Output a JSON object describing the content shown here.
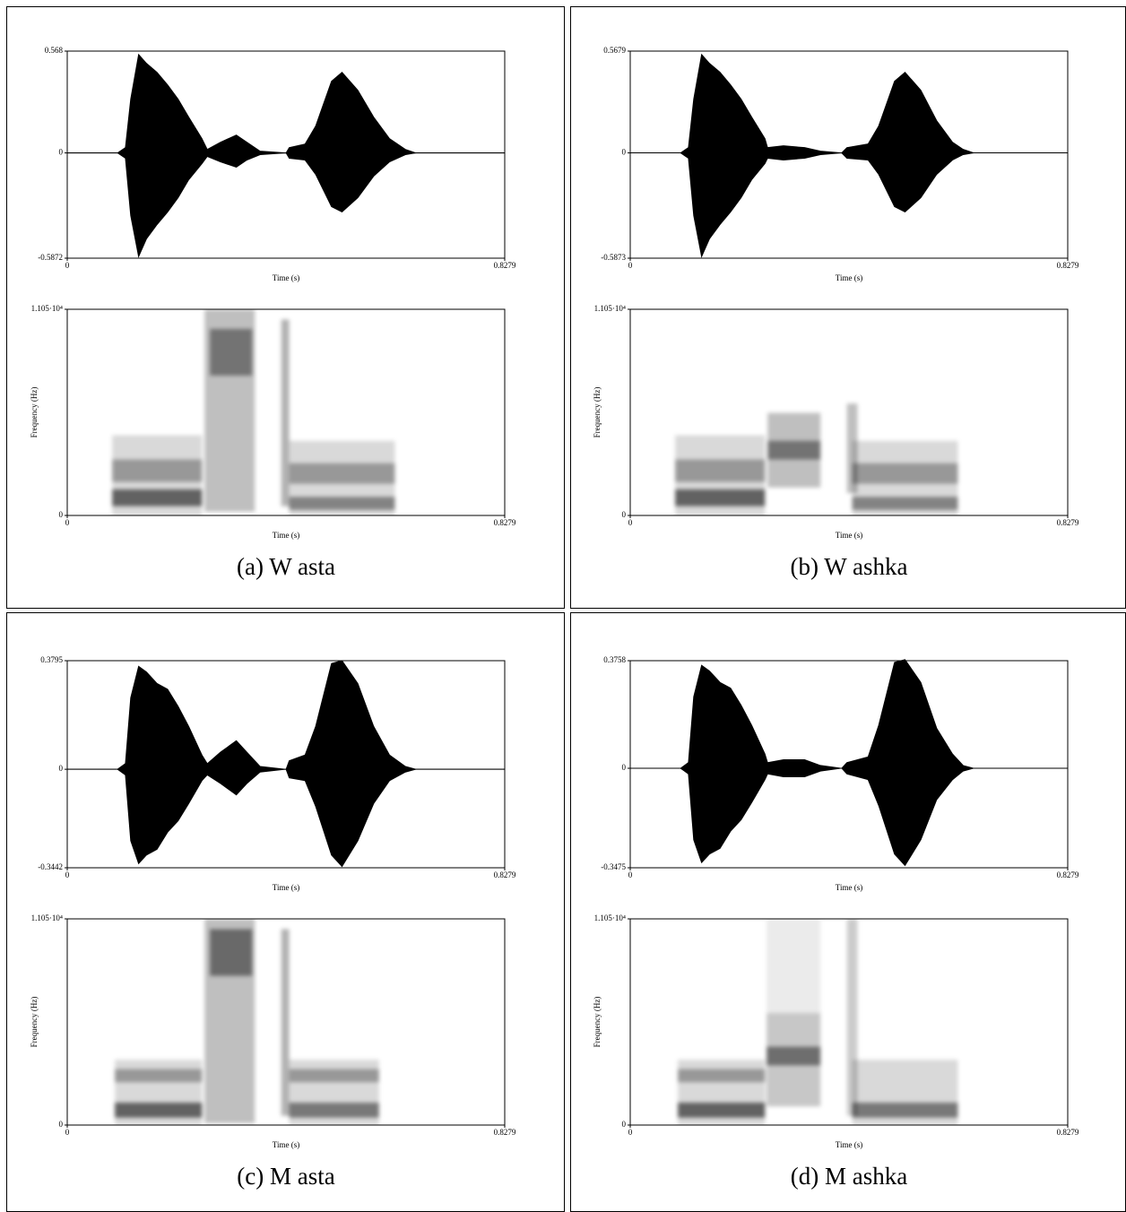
{
  "captions": [
    "(a) W asta",
    "(b) W ashka",
    "(c) M asta",
    "(d) M ashka"
  ],
  "chart_data": [
    {
      "type": "waveform",
      "xlabel": "Time (s)",
      "xlim": [
        0,
        0.8279
      ],
      "xticks": [
        0,
        0.8279
      ],
      "ylim": [
        -0.5872,
        0.568
      ],
      "yticks": [
        0.568,
        0,
        -0.5872
      ],
      "x": [
        0,
        0.095,
        0.11,
        0.12,
        0.135,
        0.15,
        0.17,
        0.19,
        0.21,
        0.23,
        0.255,
        0.265,
        0.29,
        0.32,
        0.34,
        0.365,
        0.414,
        0.42,
        0.45,
        0.47,
        0.5,
        0.52,
        0.55,
        0.58,
        0.61,
        0.64,
        0.66,
        0.8279
      ],
      "upper": [
        0,
        0,
        0.03,
        0.3,
        0.55,
        0.5,
        0.45,
        0.38,
        0.3,
        0.2,
        0.08,
        0.02,
        0.06,
        0.1,
        0.06,
        0.01,
        0,
        0.03,
        0.05,
        0.15,
        0.4,
        0.45,
        0.35,
        0.2,
        0.08,
        0.02,
        0,
        0
      ],
      "lower": [
        0,
        0,
        -0.03,
        -0.35,
        -0.58,
        -0.48,
        -0.4,
        -0.33,
        -0.25,
        -0.15,
        -0.06,
        -0.02,
        -0.05,
        -0.08,
        -0.04,
        -0.01,
        0,
        -0.03,
        -0.04,
        -0.12,
        -0.3,
        -0.33,
        -0.25,
        -0.13,
        -0.05,
        -0.01,
        0,
        0
      ]
    },
    {
      "type": "spectrogram",
      "xlabel": "Time (s)",
      "ylabel": "Frequency (Hz)",
      "xlim": [
        0,
        0.8279
      ],
      "xticks": [
        0,
        0.8279
      ],
      "ylim": [
        0,
        11050
      ],
      "yticks": [
        0,
        {
          "value": 11050,
          "label": "1.105·10⁴"
        }
      ],
      "regions": [
        {
          "time": [
            0.085,
            0.255
          ],
          "frequency": [
            0,
            4300
          ],
          "intensity": 0.15
        },
        {
          "time": [
            0.085,
            0.255
          ],
          "frequency": [
            1800,
            3000
          ],
          "intensity": 0.3
        },
        {
          "time": [
            0.085,
            0.255
          ],
          "frequency": [
            500,
            1400
          ],
          "intensity": 0.55
        },
        {
          "time": [
            0.26,
            0.355
          ],
          "frequency": [
            200,
            11050
          ],
          "intensity": 0.25
        },
        {
          "time": [
            0.27,
            0.35
          ],
          "frequency": [
            7500,
            10000
          ],
          "intensity": 0.4
        },
        {
          "time": [
            0.405,
            0.42
          ],
          "frequency": [
            500,
            10500
          ],
          "intensity": 0.3
        },
        {
          "time": [
            0.42,
            0.62
          ],
          "frequency": [
            0,
            4000
          ],
          "intensity": 0.15
        },
        {
          "time": [
            0.42,
            0.62
          ],
          "frequency": [
            1700,
            2800
          ],
          "intensity": 0.3
        },
        {
          "time": [
            0.42,
            0.62
          ],
          "frequency": [
            300,
            1000
          ],
          "intensity": 0.4
        }
      ]
    },
    {
      "type": "waveform",
      "xlabel": "Time (s)",
      "xlim": [
        0,
        0.8279
      ],
      "xticks": [
        0,
        0.8279
      ],
      "ylim": [
        -0.5873,
        0.5679
      ],
      "yticks": [
        0.5679,
        0,
        -0.5873
      ],
      "x": [
        0,
        0.095,
        0.11,
        0.12,
        0.135,
        0.15,
        0.17,
        0.19,
        0.21,
        0.23,
        0.255,
        0.26,
        0.29,
        0.33,
        0.36,
        0.4,
        0.41,
        0.45,
        0.47,
        0.5,
        0.52,
        0.55,
        0.58,
        0.61,
        0.63,
        0.65,
        0.8279
      ],
      "upper": [
        0,
        0,
        0.03,
        0.3,
        0.55,
        0.5,
        0.45,
        0.38,
        0.3,
        0.2,
        0.08,
        0.03,
        0.04,
        0.03,
        0.01,
        0,
        0.03,
        0.05,
        0.15,
        0.4,
        0.45,
        0.35,
        0.18,
        0.06,
        0.02,
        0,
        0
      ],
      "lower": [
        0,
        0,
        -0.03,
        -0.35,
        -0.58,
        -0.48,
        -0.4,
        -0.33,
        -0.25,
        -0.15,
        -0.06,
        -0.03,
        -0.04,
        -0.03,
        -0.01,
        0,
        -0.03,
        -0.04,
        -0.12,
        -0.3,
        -0.33,
        -0.25,
        -0.12,
        -0.04,
        -0.01,
        0,
        0
      ]
    },
    {
      "type": "spectrogram",
      "xlabel": "Time (s)",
      "ylabel": "Frequency (Hz)",
      "xlim": [
        0,
        0.8279
      ],
      "xticks": [
        0,
        0.8279
      ],
      "ylim": [
        0,
        11050
      ],
      "yticks": [
        0,
        {
          "value": 11050,
          "label": "1.105·10⁴"
        }
      ],
      "regions": [
        {
          "time": [
            0.085,
            0.255
          ],
          "frequency": [
            0,
            4300
          ],
          "intensity": 0.15
        },
        {
          "time": [
            0.085,
            0.255
          ],
          "frequency": [
            1800,
            3000
          ],
          "intensity": 0.3
        },
        {
          "time": [
            0.085,
            0.255
          ],
          "frequency": [
            500,
            1400
          ],
          "intensity": 0.55
        },
        {
          "time": [
            0.26,
            0.36
          ],
          "frequency": [
            1500,
            5500
          ],
          "intensity": 0.25
        },
        {
          "time": [
            0.26,
            0.36
          ],
          "frequency": [
            3000,
            4000
          ],
          "intensity": 0.4
        },
        {
          "time": [
            0.41,
            0.43
          ],
          "frequency": [
            1200,
            6000
          ],
          "intensity": 0.25
        },
        {
          "time": [
            0.42,
            0.62
          ],
          "frequency": [
            0,
            4000
          ],
          "intensity": 0.15
        },
        {
          "time": [
            0.42,
            0.62
          ],
          "frequency": [
            1700,
            2800
          ],
          "intensity": 0.3
        },
        {
          "time": [
            0.42,
            0.62
          ],
          "frequency": [
            300,
            1000
          ],
          "intensity": 0.4
        }
      ]
    },
    {
      "type": "waveform",
      "xlabel": "Time (s)",
      "xlim": [
        0,
        0.8279
      ],
      "xticks": [
        0,
        0.8279
      ],
      "ylim": [
        -0.3442,
        0.3795
      ],
      "yticks": [
        0.3795,
        0,
        -0.3442
      ],
      "x": [
        0,
        0.095,
        0.11,
        0.12,
        0.135,
        0.15,
        0.17,
        0.19,
        0.21,
        0.23,
        0.255,
        0.265,
        0.29,
        0.32,
        0.34,
        0.365,
        0.414,
        0.42,
        0.45,
        0.47,
        0.5,
        0.52,
        0.55,
        0.58,
        0.61,
        0.64,
        0.66,
        0.8279
      ],
      "upper": [
        0,
        0,
        0.02,
        0.25,
        0.36,
        0.34,
        0.3,
        0.28,
        0.22,
        0.15,
        0.05,
        0.02,
        0.06,
        0.1,
        0.06,
        0.01,
        0,
        0.03,
        0.05,
        0.15,
        0.37,
        0.38,
        0.3,
        0.15,
        0.05,
        0.01,
        0,
        0
      ],
      "lower": [
        0,
        0,
        -0.02,
        -0.25,
        -0.33,
        -0.3,
        -0.28,
        -0.22,
        -0.18,
        -0.12,
        -0.04,
        -0.02,
        -0.05,
        -0.09,
        -0.05,
        -0.01,
        0,
        -0.03,
        -0.04,
        -0.13,
        -0.3,
        -0.34,
        -0.25,
        -0.12,
        -0.04,
        -0.01,
        0,
        0
      ]
    },
    {
      "type": "spectrogram",
      "xlabel": "Time (s)",
      "ylabel": "Frequency (Hz)",
      "xlim": [
        0,
        0.8279
      ],
      "xticks": [
        0,
        0.8279
      ],
      "ylim": [
        0,
        11050
      ],
      "yticks": [
        0,
        {
          "value": 11050,
          "label": "1.105·10⁴"
        }
      ],
      "regions": [
        {
          "time": [
            0.09,
            0.255
          ],
          "frequency": [
            0,
            3500
          ],
          "intensity": 0.15
        },
        {
          "time": [
            0.09,
            0.255
          ],
          "frequency": [
            2300,
            3000
          ],
          "intensity": 0.3
        },
        {
          "time": [
            0.09,
            0.255
          ],
          "frequency": [
            400,
            1200
          ],
          "intensity": 0.55
        },
        {
          "time": [
            0.26,
            0.355
          ],
          "frequency": [
            100,
            11050
          ],
          "intensity": 0.25
        },
        {
          "time": [
            0.27,
            0.35
          ],
          "frequency": [
            8000,
            10500
          ],
          "intensity": 0.45
        },
        {
          "time": [
            0.405,
            0.42
          ],
          "frequency": [
            500,
            10500
          ],
          "intensity": 0.3
        },
        {
          "time": [
            0.42,
            0.59
          ],
          "frequency": [
            0,
            3500
          ],
          "intensity": 0.15
        },
        {
          "time": [
            0.42,
            0.59
          ],
          "frequency": [
            2300,
            3000
          ],
          "intensity": 0.3
        },
        {
          "time": [
            0.42,
            0.59
          ],
          "frequency": [
            400,
            1200
          ],
          "intensity": 0.45
        }
      ]
    },
    {
      "type": "waveform",
      "xlabel": "Time (s)",
      "xlim": [
        0,
        0.8279
      ],
      "xticks": [
        0,
        0.8279
      ],
      "ylim": [
        -0.3475,
        0.3758
      ],
      "yticks": [
        0.3758,
        0,
        -0.3475
      ],
      "x": [
        0,
        0.095,
        0.11,
        0.12,
        0.135,
        0.15,
        0.17,
        0.19,
        0.21,
        0.23,
        0.255,
        0.26,
        0.29,
        0.33,
        0.36,
        0.4,
        0.41,
        0.45,
        0.47,
        0.5,
        0.52,
        0.55,
        0.58,
        0.61,
        0.63,
        0.65,
        0.8279
      ],
      "upper": [
        0,
        0,
        0.02,
        0.25,
        0.36,
        0.34,
        0.3,
        0.28,
        0.22,
        0.15,
        0.05,
        0.02,
        0.03,
        0.03,
        0.01,
        0,
        0.02,
        0.04,
        0.15,
        0.37,
        0.38,
        0.3,
        0.14,
        0.05,
        0.01,
        0,
        0
      ],
      "lower": [
        0,
        0,
        -0.02,
        -0.25,
        -0.33,
        -0.3,
        -0.28,
        -0.22,
        -0.18,
        -0.12,
        -0.04,
        -0.02,
        -0.03,
        -0.03,
        -0.01,
        0,
        -0.02,
        -0.04,
        -0.13,
        -0.3,
        -0.34,
        -0.25,
        -0.11,
        -0.04,
        -0.01,
        0,
        0
      ]
    },
    {
      "type": "spectrogram",
      "xlabel": "Time (s)",
      "ylabel": "Frequency (Hz)",
      "xlim": [
        0,
        0.8279
      ],
      "xticks": [
        0,
        0.8279
      ],
      "ylim": [
        0,
        11050
      ],
      "yticks": [
        0,
        {
          "value": 11050,
          "label": "1.105·10⁴"
        }
      ],
      "regions": [
        {
          "time": [
            0.09,
            0.255
          ],
          "frequency": [
            0,
            3500
          ],
          "intensity": 0.15
        },
        {
          "time": [
            0.09,
            0.255
          ],
          "frequency": [
            2300,
            3000
          ],
          "intensity": 0.3
        },
        {
          "time": [
            0.09,
            0.255
          ],
          "frequency": [
            400,
            1200
          ],
          "intensity": 0.55
        },
        {
          "time": [
            0.258,
            0.36
          ],
          "frequency": [
            1000,
            6000
          ],
          "intensity": 0.22
        },
        {
          "time": [
            0.258,
            0.36
          ],
          "frequency": [
            3200,
            4200
          ],
          "intensity": 0.45
        },
        {
          "time": [
            0.258,
            0.36
          ],
          "frequency": [
            6000,
            11050
          ],
          "intensity": 0.08
        },
        {
          "time": [
            0.41,
            0.43
          ],
          "frequency": [
            500,
            11050
          ],
          "intensity": 0.2
        },
        {
          "time": [
            0.42,
            0.62
          ],
          "frequency": [
            0,
            3500
          ],
          "intensity": 0.15
        },
        {
          "time": [
            0.42,
            0.62
          ],
          "frequency": [
            400,
            1200
          ],
          "intensity": 0.45
        }
      ]
    }
  ]
}
